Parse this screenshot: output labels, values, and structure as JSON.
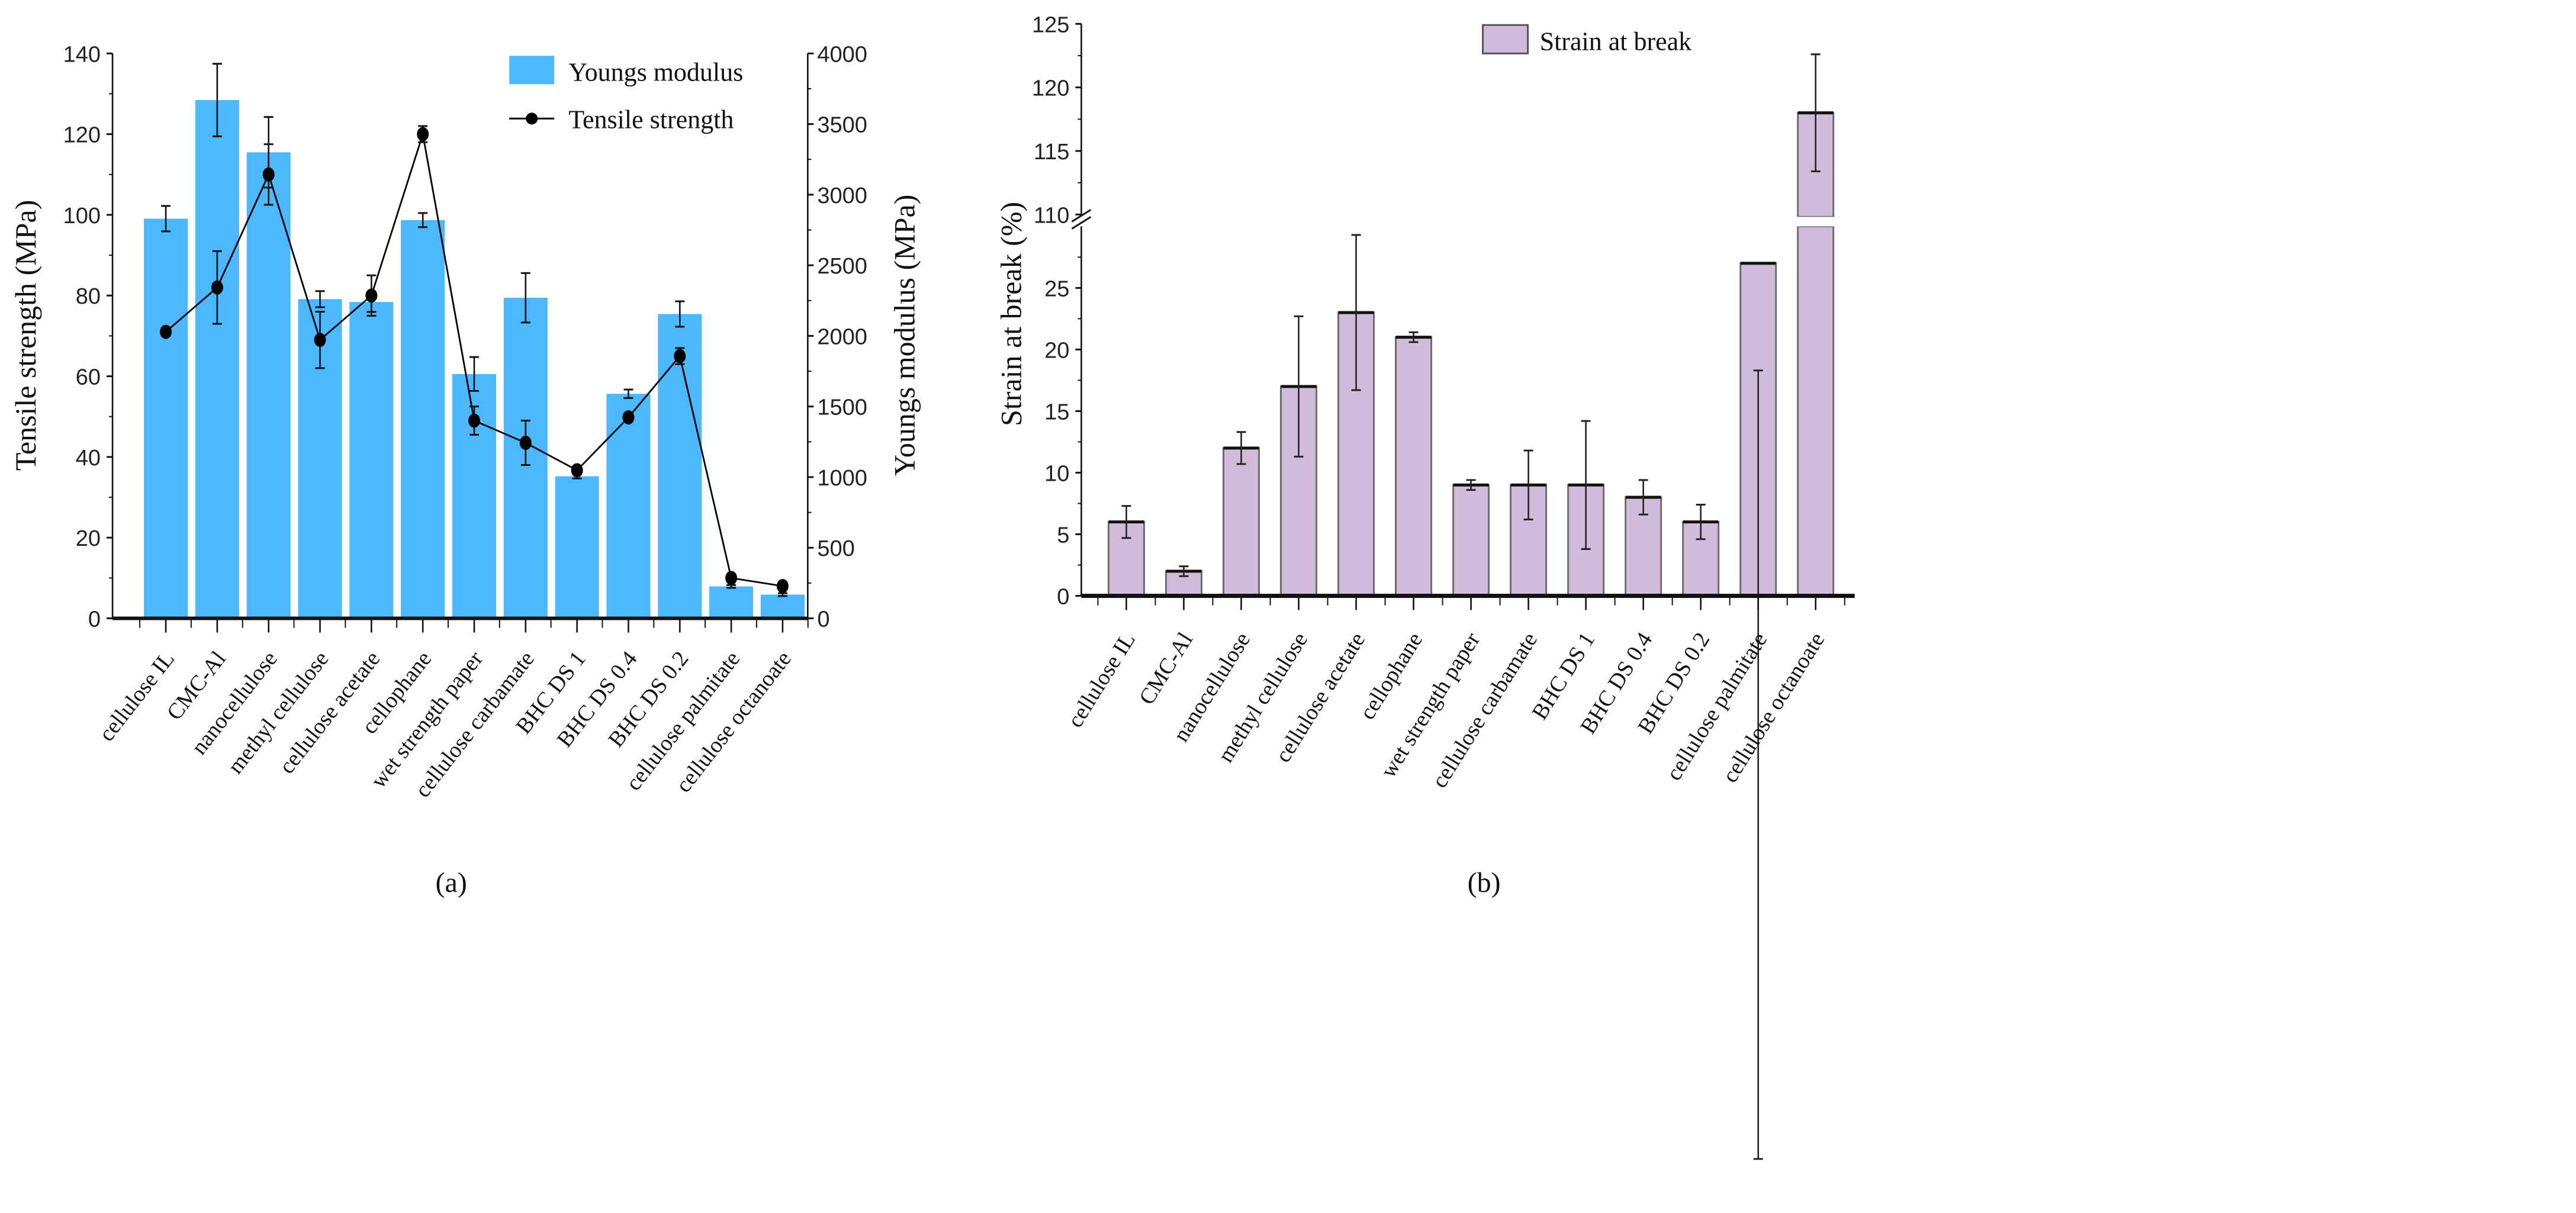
{
  "chart_data": [
    {
      "type": "bar",
      "panel_caption": "(a)",
      "caption_letter": "a",
      "categories": [
        "cellulose  IL",
        "CMC-Al",
        "nanocellulose",
        "methyl  cellulose",
        "cellulose  acetate",
        "cellophane",
        "wet strength  paper",
        "cellulose  carbamate",
        "BHC DS 1",
        "BHC DS 0.4",
        "BHC DS 0.2",
        "cellulose  palmitate",
        "cellulose  octanoate"
      ],
      "series": [
        {
          "name": "Youngs modulus",
          "type": "bar",
          "axis": "right",
          "color": "#4db8ff",
          "values": [
            2830,
            3670,
            3300,
            2260,
            2240,
            2820,
            1730,
            2270,
            1006,
            1590,
            2155,
            226,
            168
          ],
          "errors": [
            90,
            257,
            250,
            57,
            70,
            50,
            120,
            175,
            15,
            30,
            90,
            10,
            10
          ]
        },
        {
          "name": "Tensile strength",
          "type": "line",
          "axis": "left",
          "color": "#000000",
          "values": [
            71,
            82,
            110,
            69,
            80,
            120,
            49,
            43.5,
            36.7,
            49.8,
            65,
            10,
            8
          ],
          "errors": [
            1,
            9,
            7.5,
            7,
            5,
            2,
            3.5,
            5.5,
            1,
            1,
            2,
            0.5,
            0.5
          ]
        }
      ],
      "ylabel": "Tensile strength (MPa)",
      "ylabel_right": "Youngs modulus (MPa)",
      "ylim": [
        0,
        140
      ],
      "ylim_right": [
        0,
        4000
      ],
      "yticks": [
        "0",
        "20",
        "40",
        "60",
        "80",
        "100",
        "120",
        "140"
      ],
      "yticks_right": [
        "0",
        "500",
        "1000",
        "1500",
        "2000",
        "2500",
        "3000",
        "3500",
        "4000"
      ],
      "legend": "top-right",
      "grid": false
    },
    {
      "type": "bar",
      "panel_caption": "(b)",
      "caption_letter": "b",
      "categories": [
        "cellulose  IL",
        "CMC-Al",
        "nanocellulose",
        "methyl  cellulose",
        "cellulose  acetate",
        "cellophane",
        "wet strength  paper",
        "cellulose  carbamate",
        "BHC DS 1",
        "BHC DS 0.4",
        "BHC DS 0.2",
        "cellulose  palmitate",
        "cellulose  octanoate"
      ],
      "series": [
        {
          "name": "Strain at break",
          "color": "#d1bbdb",
          "values": [
            6,
            2,
            12,
            17,
            23,
            21,
            9,
            9,
            9,
            8,
            6,
            27,
            118
          ],
          "errors": [
            1.3,
            0.4,
            1.3,
            5.7,
            6.3,
            0.4,
            0.4,
            2.8,
            5.2,
            1.4,
            1.4,
            8.7,
            4.6
          ]
        }
      ],
      "ylabel": "Strain at break (%)",
      "ylim_lower": [
        0,
        30
      ],
      "ylim_upper": [
        110,
        125
      ],
      "axis_break": true,
      "yticks_lower": [
        "0",
        "5",
        "10",
        "15",
        "20",
        "25"
      ],
      "yticks_upper": [
        "110",
        "115",
        "120",
        "125"
      ],
      "legend": "top-right",
      "grid": false
    }
  ]
}
